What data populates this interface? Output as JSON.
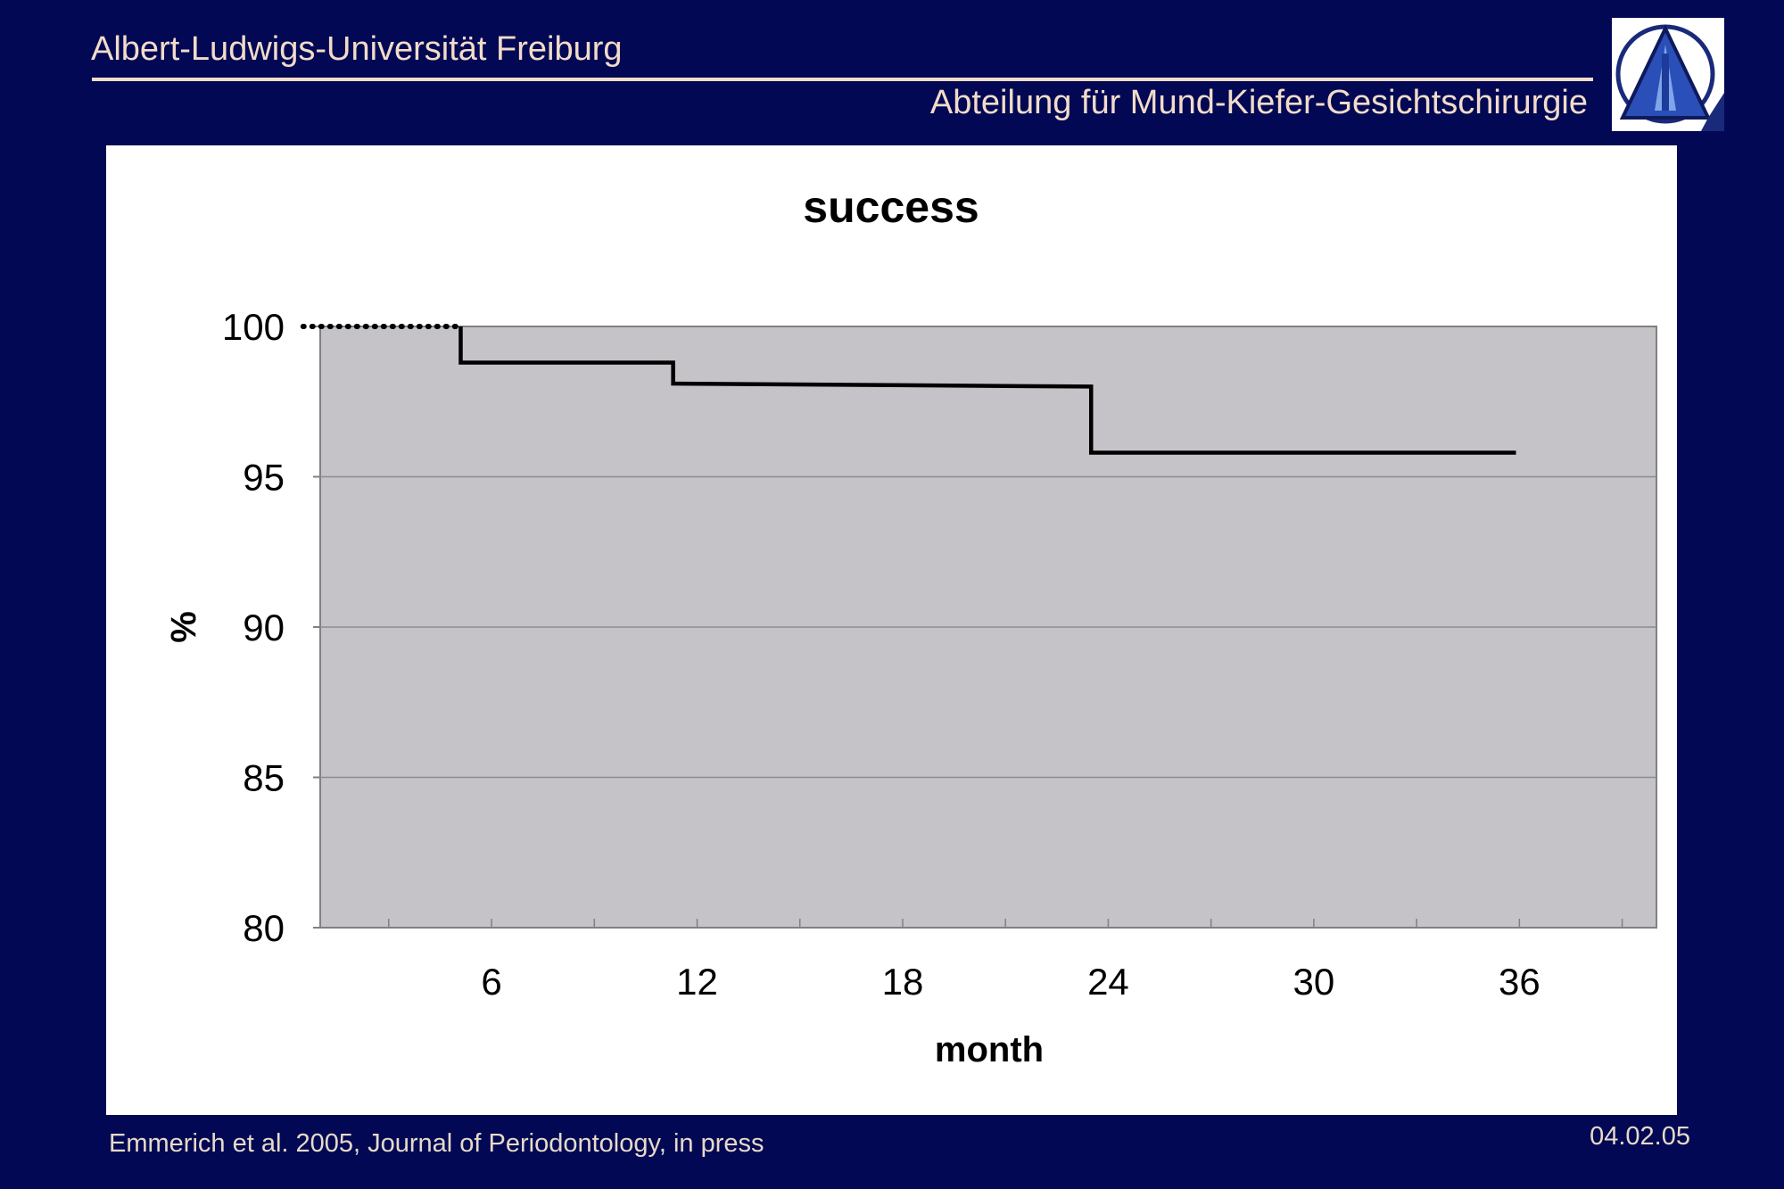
{
  "header": {
    "title": "Albert-Ludwigs-Universität Freiburg",
    "subtitle": "Abteilung für Mund-Kiefer-Gesichtschirurgie",
    "logo_icon": "university-triangle-cathedral-logo"
  },
  "footer": {
    "citation": "Emmerich et al. 2005, Journal of Periodontology, in press",
    "date": "04.02.05"
  },
  "colors": {
    "background": "#020854",
    "header_text": "#f2dcc8",
    "plot_area": "#c5c3c8",
    "line": "#000000"
  },
  "chart_data": {
    "type": "line",
    "title": "success",
    "xlabel": "month",
    "ylabel": "%",
    "xlim": [
      1,
      40
    ],
    "ylim": [
      80,
      100
    ],
    "xticks": [
      6,
      12,
      18,
      24,
      30,
      36
    ],
    "yticks": [
      80,
      85,
      90,
      95,
      100
    ],
    "grid": true,
    "legend": "none",
    "series": [
      {
        "style": "step",
        "x": [
          5.1,
          5.1,
          11.3,
          11.3,
          23.5,
          23.5,
          35.9
        ],
        "y": [
          100,
          98.8,
          98.8,
          98.1,
          98.0,
          95.8,
          95.8
        ]
      }
    ],
    "baseline_dotted": {
      "x": [
        0.5,
        5.1
      ],
      "y": [
        100,
        100
      ]
    }
  }
}
